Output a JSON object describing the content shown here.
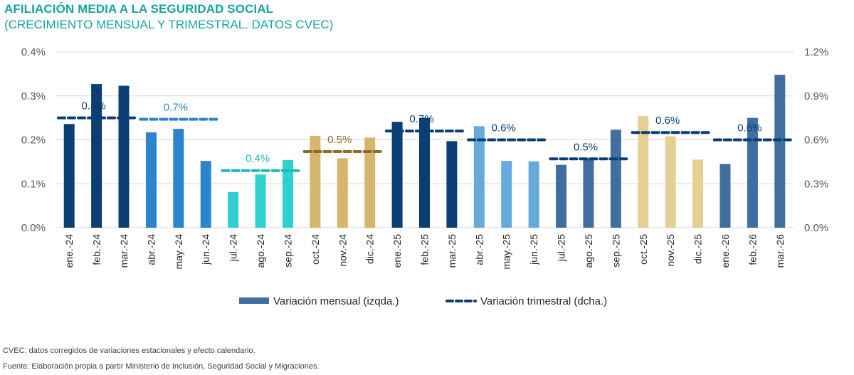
{
  "header": {
    "title": "AFILIACIÓN MEDIA A LA SEGURIDAD SOCIAL",
    "subtitle": "(CRECIMIENTO MENSUAL Y TRIMESTRAL. DATOS CVEC)"
  },
  "footer": {
    "note": "CVEC: datos corregidos de variaciones estacionales y efecto calendario.",
    "source": "Fuente: Elaboración propia a partir Ministerio de Inclusión, Seguridad Social y Migraciones."
  },
  "chart_data": {
    "type": "bar",
    "title": "AFILIACIÓN MEDIA A LA SEGURIDAD SOCIAL",
    "categories": [
      "ene.-24",
      "feb.-24",
      "mar.-24",
      "abr.-24",
      "may.-24",
      "jun.-24",
      "jul.-24",
      "ago.-24",
      "sep.-24",
      "oct.-24",
      "nov.-24",
      "dic.-24",
      "ene.-25",
      "feb.-25",
      "mar.-25",
      "abr.-25",
      "may.-25",
      "jun.-25",
      "jul.-25",
      "ago.-25",
      "sep.-25",
      "oct.-25",
      "nov.-25",
      "dic.-25",
      "ene.-26",
      "feb.-26",
      "mar.-26"
    ],
    "series": [
      {
        "name": "Variación mensual (izqda.)",
        "axis": "left",
        "values": [
          0.236,
          0.327,
          0.323,
          0.217,
          0.225,
          0.152,
          0.081,
          0.121,
          0.154,
          0.209,
          0.158,
          0.205,
          0.241,
          0.25,
          0.197,
          0.231,
          0.152,
          0.151,
          0.143,
          0.158,
          0.223,
          0.254,
          0.208,
          0.155,
          0.145,
          0.25,
          0.348
        ],
        "colors": [
          "#0b3e74",
          "#0b3e74",
          "#0b3e74",
          "#2b85cc",
          "#2b85cc",
          "#2b85cc",
          "#2fd0d0",
          "#2fd0d0",
          "#2fd0d0",
          "#d6b56c",
          "#d6b56c",
          "#d6b56c",
          "#0b3e74",
          "#0b3e74",
          "#0b3e74",
          "#66a9dc",
          "#66a9dc",
          "#66a9dc",
          "#3f6fa0",
          "#3f6fa0",
          "#3f6fa0",
          "#e6cf92",
          "#e6cf92",
          "#e6cf92",
          "#3f6fa0",
          "#3f6fa0",
          "#3f6fa0"
        ]
      },
      {
        "name": "Variación trimestral (dcha.)",
        "axis": "right",
        "quarters": [
          {
            "start": 0,
            "end": 2,
            "value": 0.75,
            "label": "0.8%",
            "color": "#0b3e74"
          },
          {
            "start": 3,
            "end": 5,
            "value": 0.74,
            "label": "0.7%",
            "color": "#2b85cc"
          },
          {
            "start": 6,
            "end": 8,
            "value": 0.39,
            "label": "0.4%",
            "color": "#1fb8b8"
          },
          {
            "start": 9,
            "end": 11,
            "value": 0.52,
            "label": "0.5%",
            "color": "#8a6f2a"
          },
          {
            "start": 12,
            "end": 14,
            "value": 0.66,
            "label": "0.7%",
            "color": "#0b3e74"
          },
          {
            "start": 15,
            "end": 17,
            "value": 0.6,
            "label": "0.6%",
            "color": "#0b3e74"
          },
          {
            "start": 18,
            "end": 20,
            "value": 0.47,
            "label": "0.5%",
            "color": "#0b3e74"
          },
          {
            "start": 21,
            "end": 23,
            "value": 0.65,
            "label": "0.6%",
            "color": "#0b3e74"
          },
          {
            "start": 24,
            "end": 26,
            "value": 0.6,
            "label": "0.6%",
            "color": "#0b3e74"
          }
        ]
      }
    ],
    "left_axis": {
      "ylim": [
        0,
        0.4
      ],
      "ticks": [
        "0.0%",
        "0.1%",
        "0.2%",
        "0.3%",
        "0.4%"
      ]
    },
    "right_axis": {
      "ylim": [
        0,
        1.2
      ],
      "ticks": [
        "0.0%",
        "0.3%",
        "0.6%",
        "0.9%",
        "1.2%"
      ]
    },
    "legend": {
      "position": "bottom",
      "monthly": "Variación mensual (izqda.)",
      "quarterly": "Variación trimestral (dcha.)",
      "monthly_color": "#3f6fa0",
      "quarterly_color": "#0b3e74"
    },
    "grid": true
  }
}
